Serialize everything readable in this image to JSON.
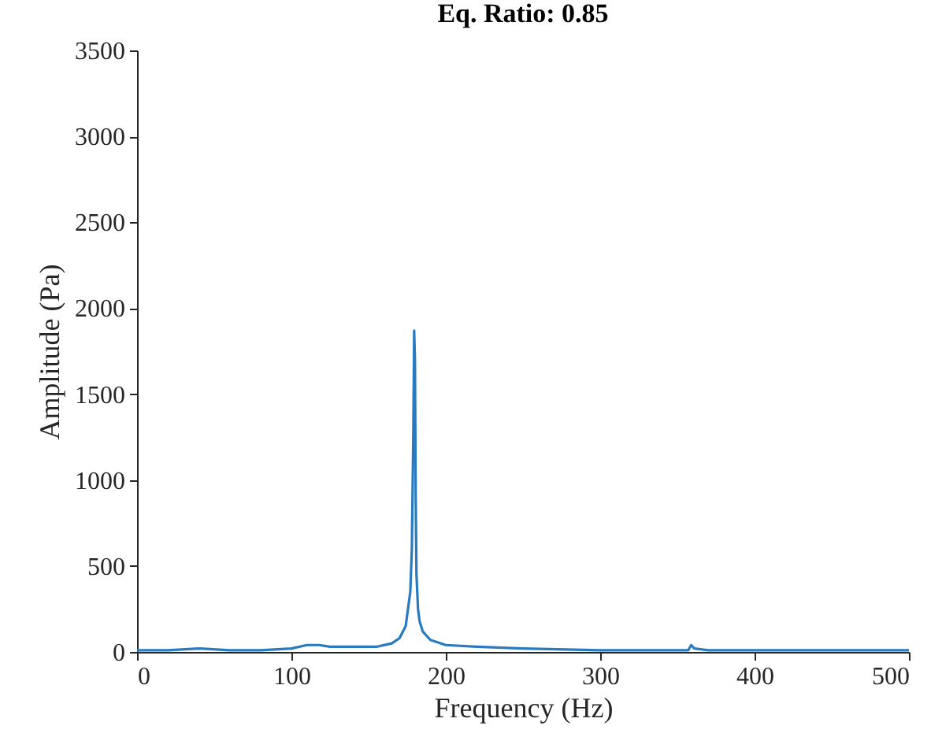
{
  "chart_data": {
    "type": "line",
    "title": "Eq. Ratio: 0.85",
    "xlabel": "Frequency (Hz)",
    "ylabel": "Amplitude (Pa)",
    "x": [
      0,
      20,
      40,
      60,
      80,
      100,
      110,
      118,
      125,
      140,
      155,
      165,
      170,
      174,
      177,
      178,
      179,
      179.5,
      180,
      180.5,
      181,
      182,
      183,
      185,
      190,
      200,
      220,
      250,
      300,
      350,
      357,
      359,
      361,
      370,
      400,
      450,
      500
    ],
    "series": [
      {
        "color": "#2a7abf",
        "values": [
          10,
          10,
          20,
          10,
          10,
          20,
          40,
          40,
          30,
          30,
          30,
          50,
          80,
          150,
          350,
          600,
          1300,
          1870,
          1700,
          900,
          450,
          250,
          180,
          120,
          70,
          40,
          30,
          20,
          10,
          10,
          10,
          40,
          20,
          10,
          10,
          10,
          10
        ]
      }
    ],
    "xlim": [
      0,
      500
    ],
    "xticks": [
      0,
      100,
      200,
      300,
      400,
      500
    ],
    "ylim": [
      0,
      3500
    ],
    "yticks": [
      0,
      500,
      1000,
      1500,
      2000,
      2500,
      3000,
      3500
    ],
    "grid": false,
    "legend": false
  }
}
